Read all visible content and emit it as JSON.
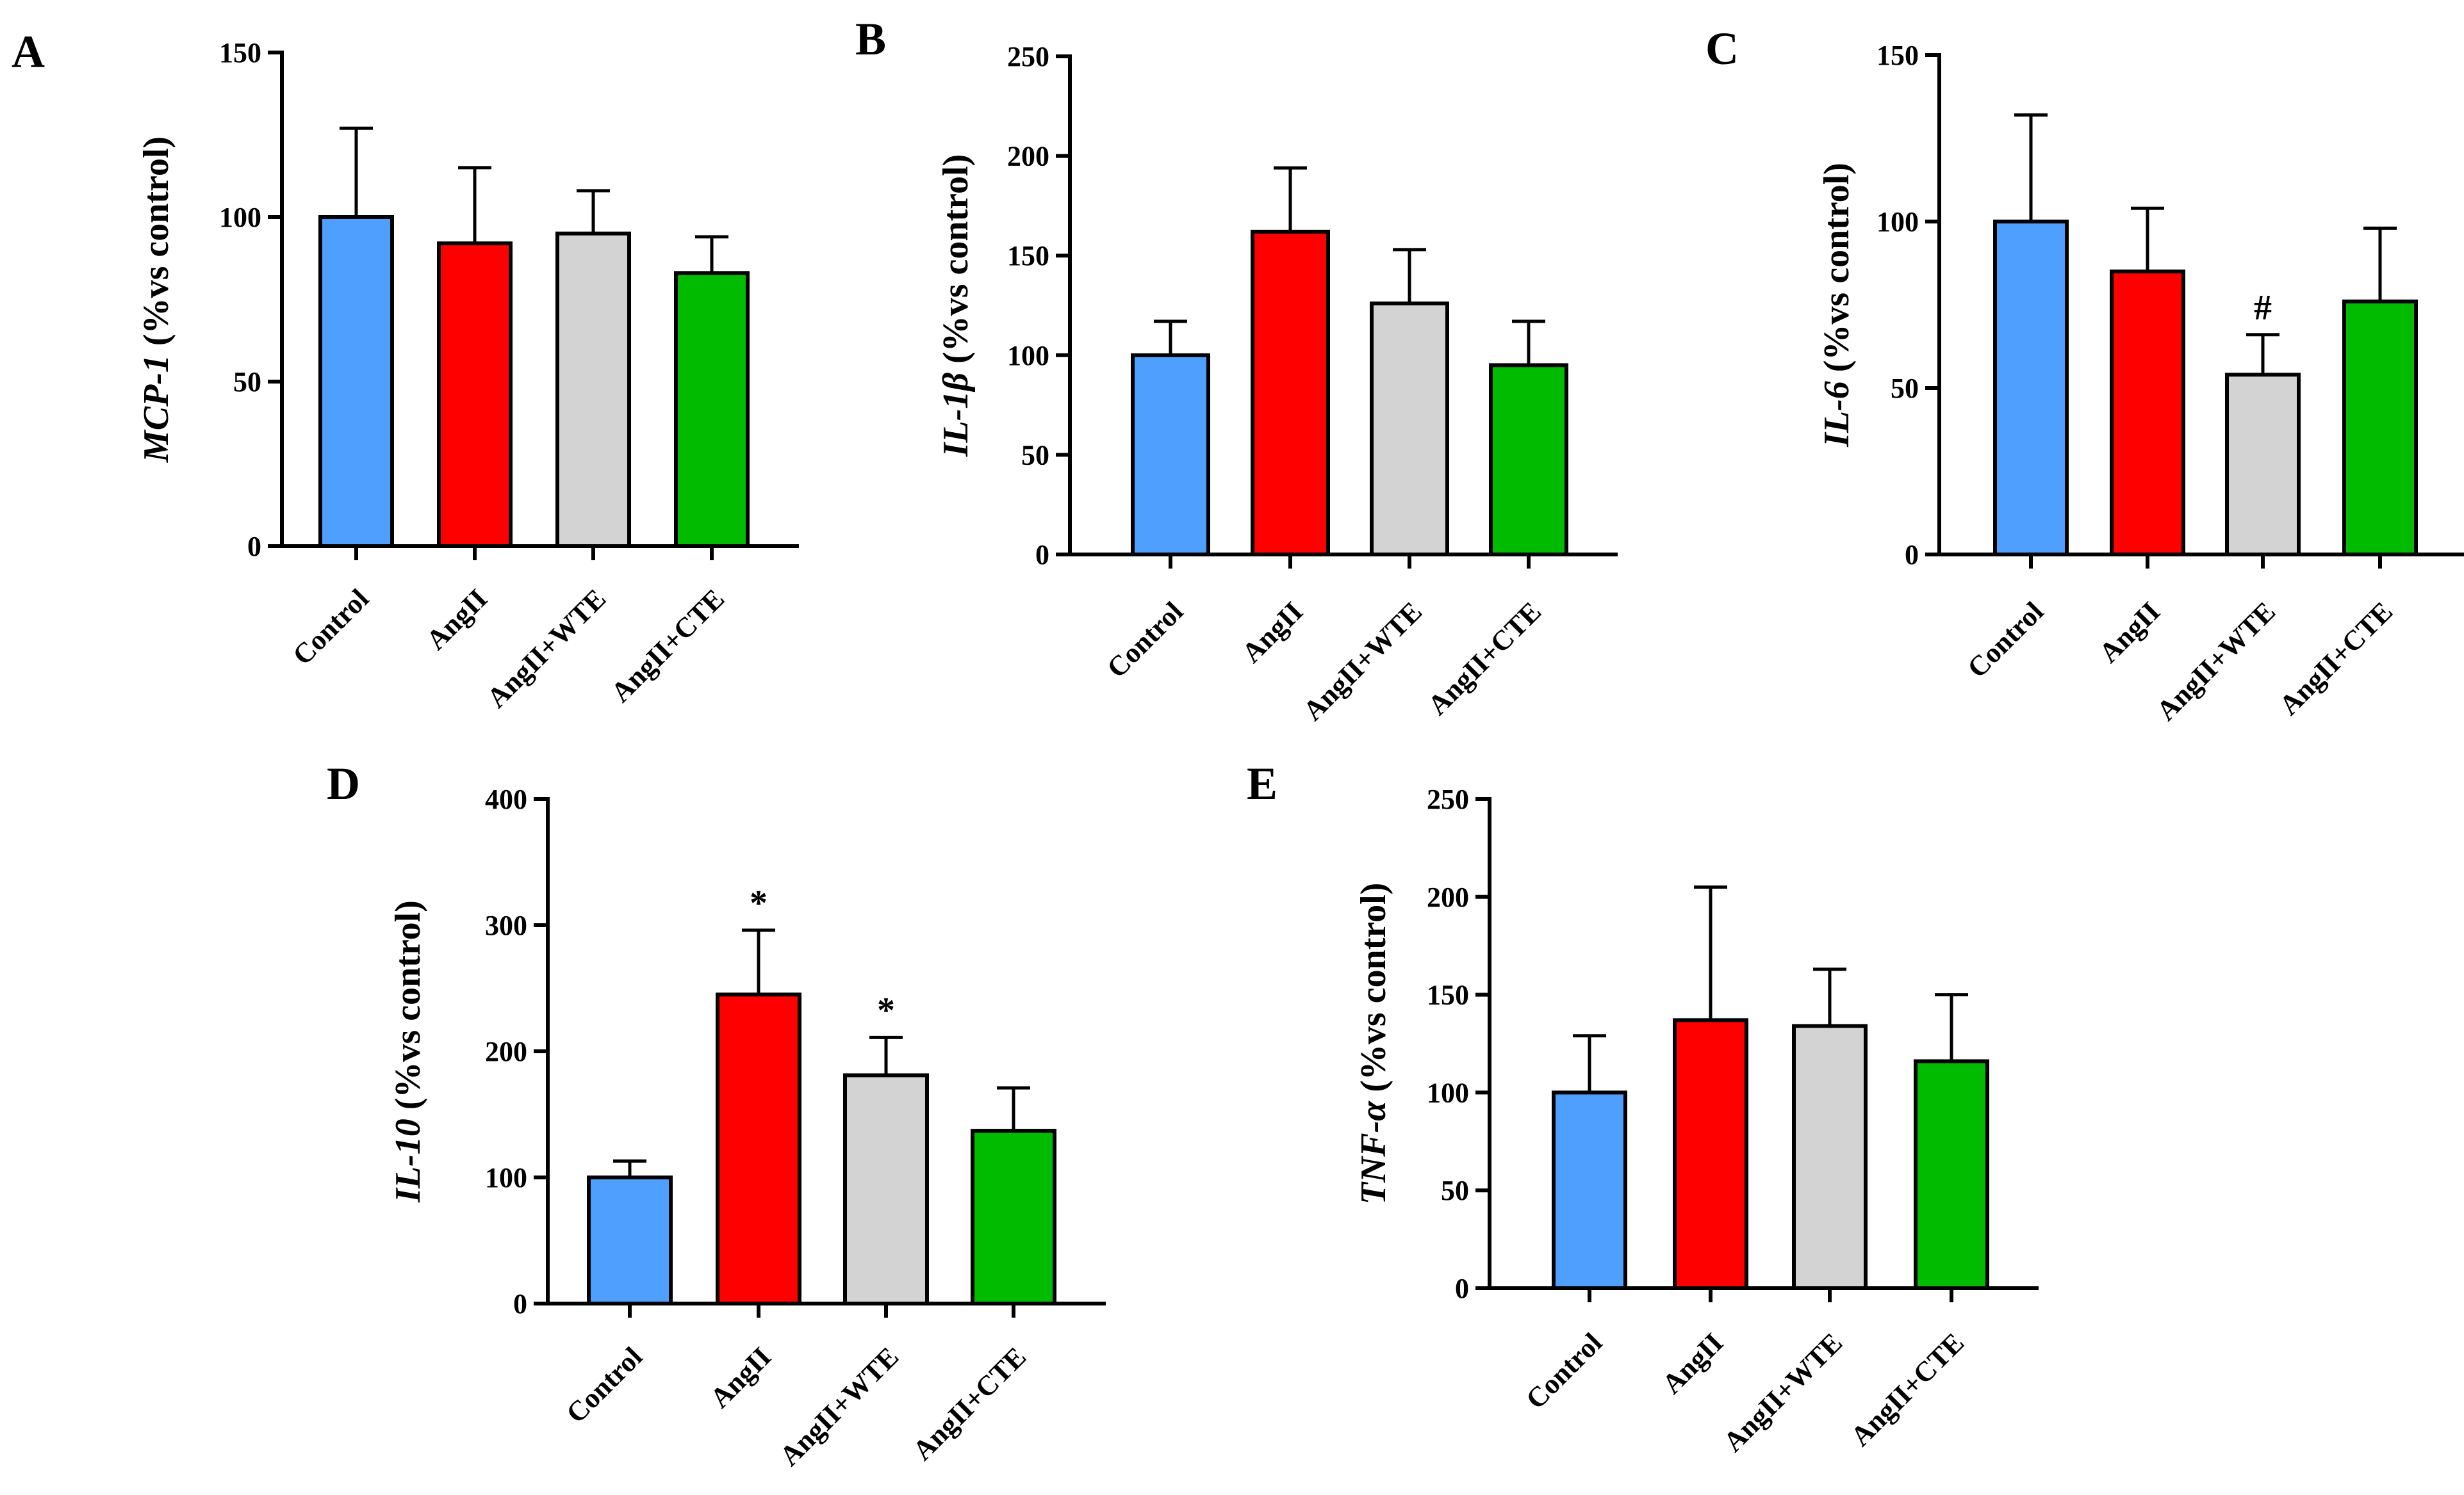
{
  "chart_data": [
    {
      "type": "bar",
      "panel": "A",
      "ylabel_italic": "MCP-1",
      "ylabel_rest": " (%vs control)",
      "ylim": [
        0,
        150
      ],
      "yticks": [
        0,
        50,
        100,
        150
      ],
      "categories": [
        "Control",
        "AngII",
        "AngII+WTE",
        "AngII+CTE"
      ],
      "values": [
        100,
        92,
        95,
        83
      ],
      "errors": [
        27,
        23,
        13,
        11
      ],
      "annotations": [
        "",
        "",
        "",
        ""
      ],
      "colors": [
        "#4f9ffe",
        "#ff0000",
        "#d3d3d3",
        "#00bb00"
      ]
    },
    {
      "type": "bar",
      "panel": "B",
      "ylabel_italic": "IL-1β",
      "ylabel_rest": " (%vs control)",
      "ylim": [
        0,
        250
      ],
      "yticks": [
        0,
        50,
        100,
        150,
        200,
        250
      ],
      "categories": [
        "Control",
        "AngII",
        "AngII+WTE",
        "AngII+CTE"
      ],
      "values": [
        100,
        162,
        126,
        95
      ],
      "errors": [
        17,
        32,
        27,
        22
      ],
      "annotations": [
        "",
        "",
        "",
        ""
      ],
      "colors": [
        "#4f9ffe",
        "#ff0000",
        "#d3d3d3",
        "#00bb00"
      ]
    },
    {
      "type": "bar",
      "panel": "C",
      "ylabel_italic": "IL-6",
      "ylabel_rest": " (%vs control)",
      "ylim": [
        0,
        150
      ],
      "yticks": [
        0,
        50,
        100,
        150
      ],
      "categories": [
        "Control",
        "AngII",
        "AngII+WTE",
        "AngII+CTE"
      ],
      "values": [
        100,
        85,
        54,
        76
      ],
      "errors": [
        32,
        19,
        12,
        22
      ],
      "annotations": [
        "",
        "",
        "#",
        ""
      ],
      "colors": [
        "#4f9ffe",
        "#ff0000",
        "#d3d3d3",
        "#00bb00"
      ]
    },
    {
      "type": "bar",
      "panel": "D",
      "ylabel_italic": "IL-10",
      "ylabel_rest": " (%vs control)",
      "ylim": [
        0,
        400
      ],
      "yticks": [
        0,
        100,
        200,
        300,
        400
      ],
      "categories": [
        "Control",
        "AngII",
        "AngII+WTE",
        "AngII+CTE"
      ],
      "values": [
        100,
        245,
        181,
        137
      ],
      "errors": [
        13,
        51,
        30,
        34
      ],
      "annotations": [
        "",
        "*",
        "*",
        ""
      ],
      "colors": [
        "#4f9ffe",
        "#ff0000",
        "#d3d3d3",
        "#00bb00"
      ]
    },
    {
      "type": "bar",
      "panel": "E",
      "ylabel_italic": "TNF-α",
      "ylabel_rest": " (%vs control)",
      "ylim": [
        0,
        250
      ],
      "yticks": [
        0,
        50,
        100,
        150,
        200,
        250
      ],
      "categories": [
        "Control",
        "AngII",
        "AngII+WTE",
        "AngII+CTE"
      ],
      "values": [
        100,
        137,
        134,
        116
      ],
      "errors": [
        29,
        68,
        29,
        34
      ],
      "annotations": [
        "",
        "",
        "",
        ""
      ],
      "colors": [
        "#4f9ffe",
        "#ff0000",
        "#d3d3d3",
        "#00bb00"
      ]
    }
  ]
}
